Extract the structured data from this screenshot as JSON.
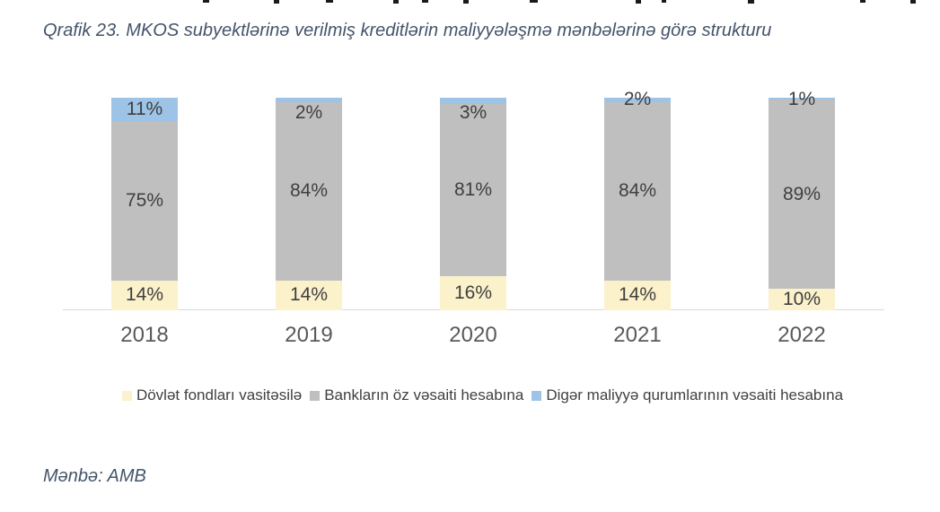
{
  "title": "Qrafik 23. MKOS subyektlərinə verilmiş kreditlərin maliyyələşmə mənbələrinə görə strukturu",
  "source_note": "Mənbə: AMB",
  "chart_data": {
    "type": "bar",
    "stacked": true,
    "title": "Qrafik 23. MKOS subyektlərinə verilmiş kreditlərin maliyyələşmə mənbələrinə görə strukturu",
    "categories": [
      "2018",
      "2019",
      "2020",
      "2021",
      "2022"
    ],
    "series": [
      {
        "name": "Dövlət fondları vasitəsilə",
        "color": "#FBF1CB",
        "values": [
          14,
          14,
          16,
          14,
          10
        ]
      },
      {
        "name": "Bankların öz vəsaiti hesabına",
        "color": "#BFBFBF",
        "values": [
          75,
          84,
          81,
          84,
          89
        ]
      },
      {
        "name": "Digər maliyyə qurumlarının vəsaiti hesabına",
        "color": "#9DC3E6",
        "values": [
          11,
          2,
          3,
          2,
          1
        ]
      }
    ],
    "value_suffix": "%",
    "ylim": [
      0,
      100
    ],
    "grid": false,
    "y_axis_visible": false,
    "legend_position": "bottom",
    "top_label_placement": [
      "inside",
      "below",
      "below",
      "above",
      "above"
    ],
    "axis_line_color": "#D9D9D9",
    "data_label_color": "#3F3F3F",
    "category_label_color": "#595959",
    "title_color": "#44546A"
  }
}
